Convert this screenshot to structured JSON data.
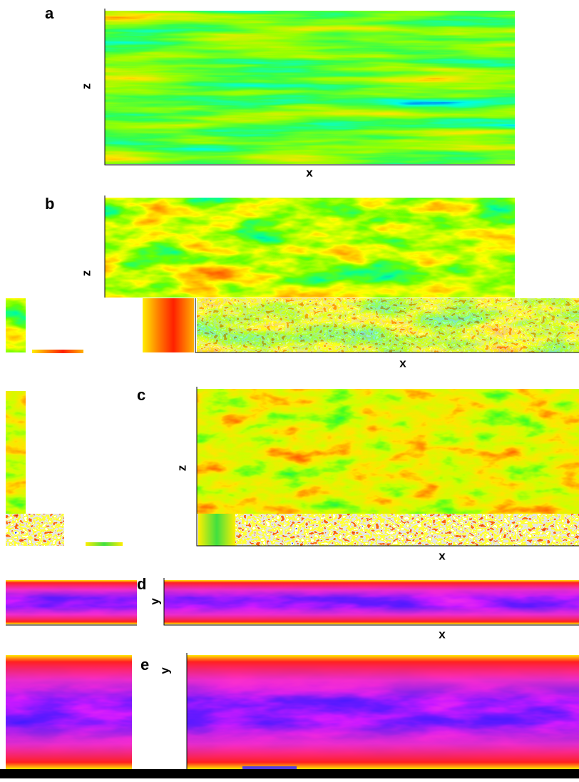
{
  "panels": [
    {
      "label": "a",
      "x_label": "x",
      "y_label": "z"
    },
    {
      "label": "b",
      "x_label": "x",
      "y_label": "z"
    },
    {
      "label": "c",
      "x_label": "x",
      "y_label": "z"
    },
    {
      "label": "d",
      "x_label": "x",
      "y_label": "y"
    },
    {
      "label": "e",
      "y_label": "y"
    }
  ]
}
